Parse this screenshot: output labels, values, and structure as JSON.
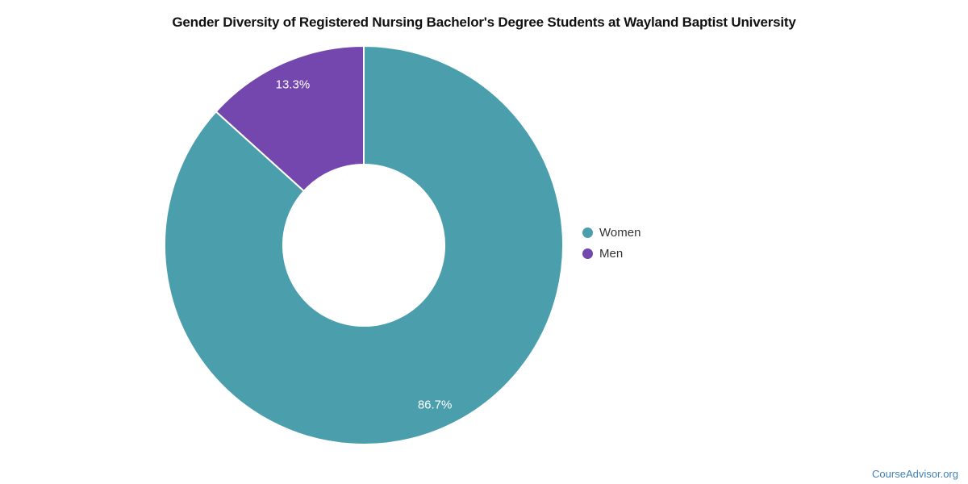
{
  "title": "Gender Diversity of Registered Nursing Bachelor's Degree Students at Wayland Baptist University",
  "watermark": "CourseAdvisor.org",
  "legend": {
    "position": "right",
    "items": [
      {
        "label": "Women",
        "color": "#4b9fad"
      },
      {
        "label": "Men",
        "color": "#7347ad"
      }
    ]
  },
  "chart_data": {
    "type": "pie",
    "title": "Gender Diversity of Registered Nursing Bachelor's Degree Students at Wayland Baptist University",
    "categories": [
      "Women",
      "Men"
    ],
    "values": [
      86.7,
      13.3
    ],
    "data_labels": [
      "86.7%",
      "13.3%"
    ],
    "colors": [
      "#4b9fad",
      "#7347ad"
    ],
    "donut": true,
    "inner_radius_ratio": 0.405,
    "outer_radius": 247,
    "center": [
      451,
      304
    ],
    "start_angle_deg": 0,
    "direction": "clockwise",
    "label_distance": -30,
    "data_label_color": "#ffffff",
    "slice_border_color": "#ffffff",
    "legend_position": "right"
  }
}
